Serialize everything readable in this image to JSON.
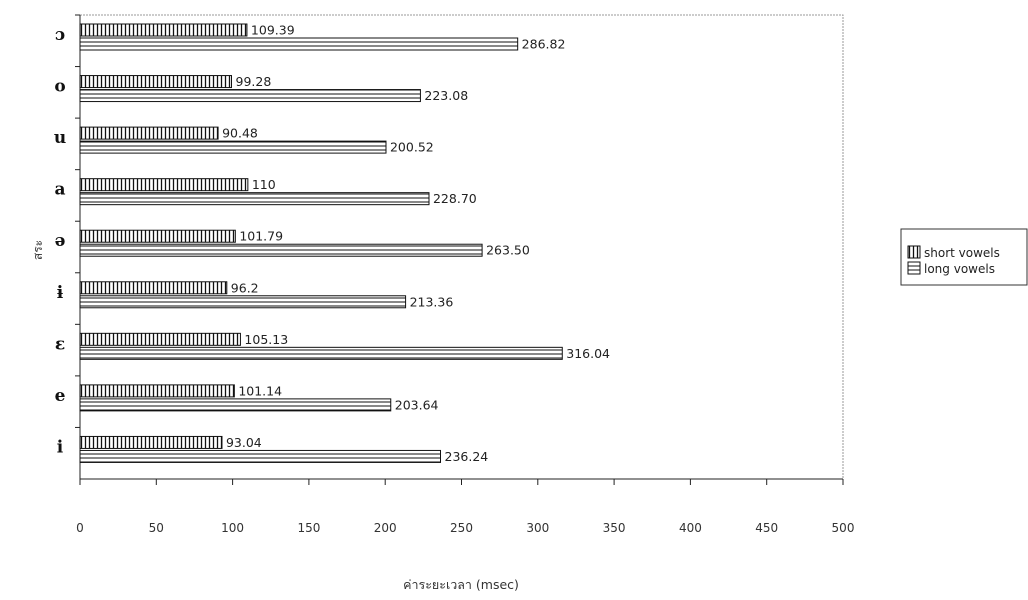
{
  "chart_data": {
    "type": "bar",
    "orientation": "horizontal",
    "title": "",
    "xlabel": "ค่าระยะเวลา (msec)",
    "ylabel": "สระ",
    "xlim": [
      0,
      500
    ],
    "xticks": [
      "0",
      "50",
      "100",
      "150",
      "200",
      "250",
      "300",
      "350",
      "400",
      "450",
      "500"
    ],
    "grid": false,
    "legend_position": "right",
    "categories": [
      "ɔ",
      "o",
      "u",
      "a",
      "ə",
      "ɨ",
      "ɛ",
      "e",
      "i"
    ],
    "series": [
      {
        "name": "short vowels",
        "pattern": "vertical-hatch",
        "values": [
          109.39,
          99.28,
          90.48,
          110,
          101.79,
          96.2,
          105.13,
          101.14,
          93.04
        ],
        "labels": [
          "109.39",
          "99.28",
          "90.48",
          "110",
          "101.79",
          "96.2",
          "105.13",
          "101.14",
          "93.04"
        ]
      },
      {
        "name": "long vowels",
        "pattern": "horizontal-hatch",
        "values": [
          286.82,
          223.08,
          200.52,
          228.7,
          263.5,
          213.36,
          316.04,
          203.64,
          236.24
        ],
        "labels": [
          "286.82",
          "223.08",
          "200.52",
          "228.70",
          "263.50",
          "213.36",
          "316.04",
          "203.64",
          "236.24"
        ]
      }
    ]
  }
}
